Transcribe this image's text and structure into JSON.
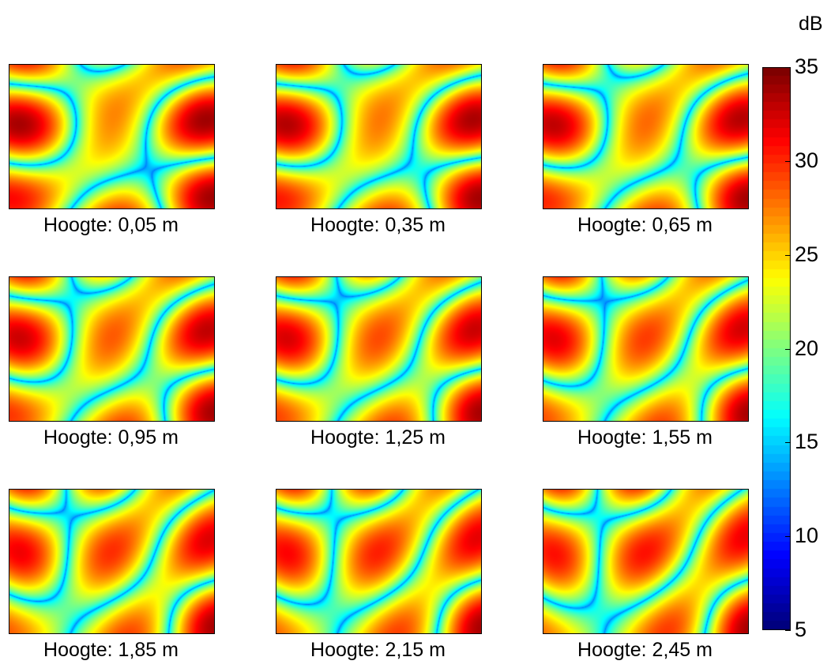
{
  "chart_data": {
    "type": "heatmap",
    "title": "",
    "colorbar": {
      "unit": "dB",
      "colormap": "jet",
      "range": [
        5,
        35
      ],
      "ticks": [
        "35",
        "30",
        "25",
        "20",
        "15",
        "10",
        "5"
      ],
      "tick_values": [
        35,
        30,
        25,
        20,
        15,
        10,
        5
      ]
    },
    "panels": [
      {
        "label": "Hoogte: 0,05 m",
        "height_m": 0.05
      },
      {
        "label": "Hoogte: 0,35 m",
        "height_m": 0.35
      },
      {
        "label": "Hoogte: 0,65 m",
        "height_m": 0.65
      },
      {
        "label": "Hoogte: 0,95 m",
        "height_m": 0.95
      },
      {
        "label": "Hoogte: 1,25 m",
        "height_m": 1.25
      },
      {
        "label": "Hoogte: 1,55 m",
        "height_m": 1.55
      },
      {
        "label": "Hoogte: 1,85 m",
        "height_m": 1.85
      },
      {
        "label": "Hoogte: 2,15 m",
        "height_m": 2.15
      },
      {
        "label": "Hoogte: 2,45 m",
        "height_m": 2.45
      }
    ]
  }
}
